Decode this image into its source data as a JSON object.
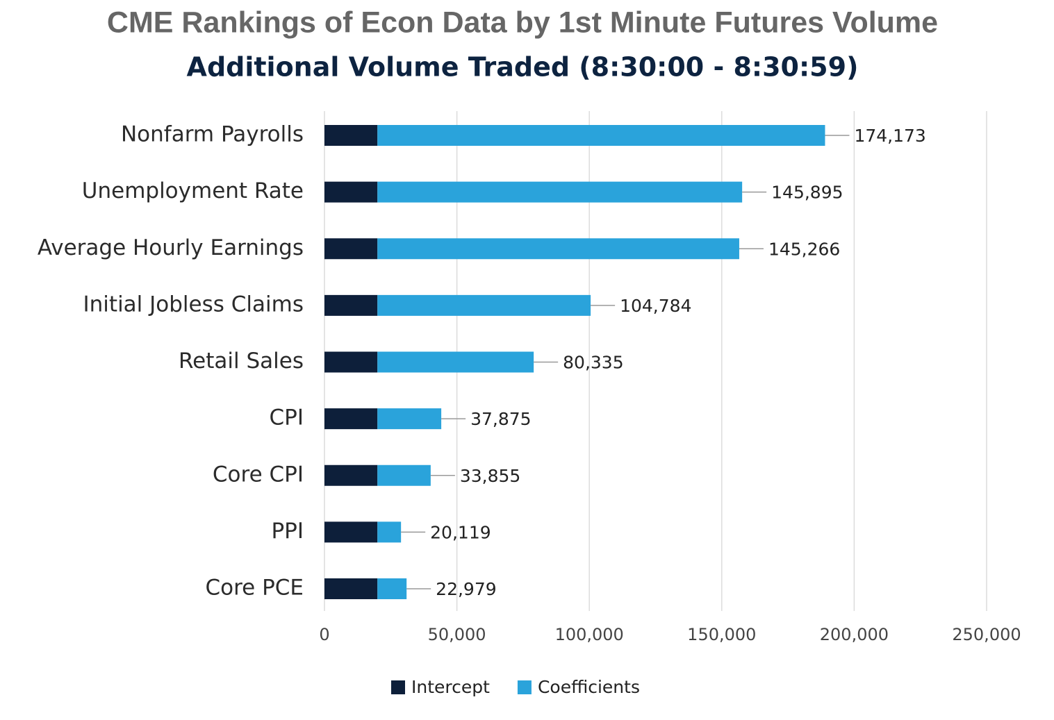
{
  "chart_data": {
    "type": "stacked-bar-horizontal",
    "title": "CME Rankings of Econ Data by 1st Minute Futures Volume",
    "subtitle": "Additional Volume Traded (8:30:00 - 8:30:59)",
    "categories": [
      "Nonfarm Payrolls",
      "Unemployment Rate",
      "Average Hourly Earnings",
      "Initial Jobless Claims",
      "Retail Sales",
      "CPI",
      "Core CPI",
      "PPI",
      "Core PCE"
    ],
    "series": [
      {
        "name": "Intercept",
        "color": "#0d1f3a",
        "values": [
          20000,
          20000,
          20000,
          20000,
          20000,
          20000,
          20000,
          20000,
          20000
        ]
      },
      {
        "name": "Coefficients",
        "color": "#2aa3db",
        "values": [
          169000,
          137700,
          136600,
          80500,
          59000,
          24100,
          20100,
          8900,
          11000
        ]
      }
    ],
    "annotations": [
      "174,173",
      "145,895",
      "145,266",
      "104,784",
      "80,335",
      "37,875",
      "33,855",
      "20,119",
      "22,979"
    ],
    "xlim": [
      0,
      250000
    ],
    "xticks": [
      0,
      {
        "value": 50000,
        "label": "50,000"
      },
      {
        "value": 100000,
        "label": "100,000"
      },
      {
        "value": 150000,
        "label": "150,000"
      },
      {
        "value": 200000,
        "label": "200,000"
      },
      {
        "value": 250000,
        "label": "250,000"
      }
    ],
    "grid": true,
    "legend": "bottom"
  }
}
